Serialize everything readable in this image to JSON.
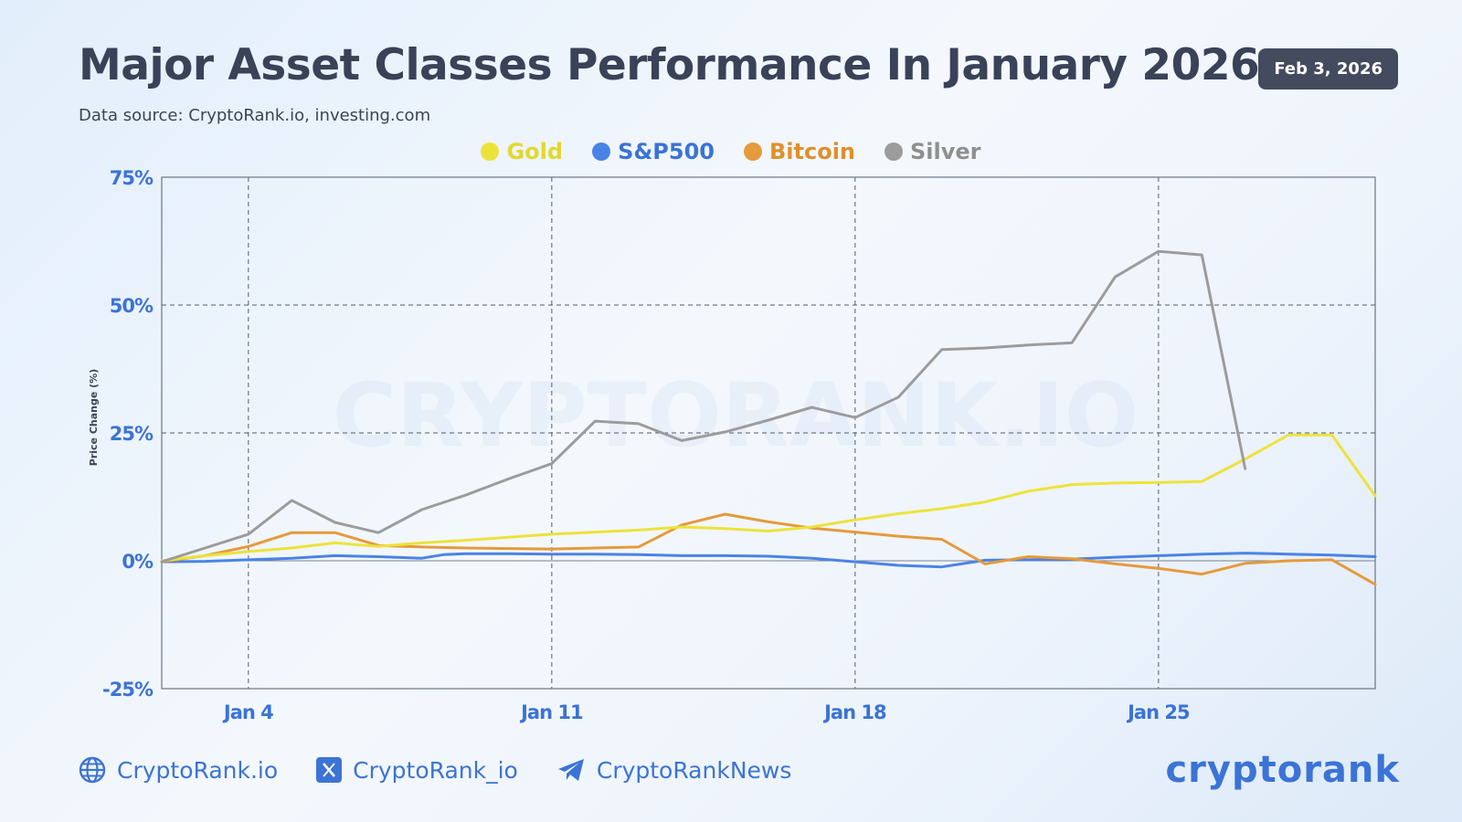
{
  "header": {
    "title": "Major Asset Classes Performance In January 2026",
    "subtitle": "Data source: CryptoRank.io, investing.com",
    "date": "Feb 3, 2026"
  },
  "watermark": "CRYPTORANK.IO",
  "footer": {
    "website": "CryptoRank.io",
    "x_handle": "CryptoRank_io",
    "telegram": "CryptoRankNews",
    "brand": "cryptorank"
  },
  "colors": {
    "Gold": "#ece33a",
    "S&P500": "#4a83e6",
    "Bitcoin": "#e59a3c",
    "Silver": "#9c9c9c",
    "axis_text": "#3b73d6"
  },
  "chart_data": {
    "type": "line",
    "title": "Major Asset Classes Performance In January 2026",
    "ylabel": "Price Change (%)",
    "xlabel": "",
    "ylim": [
      -25,
      75
    ],
    "xlim": [
      1,
      29
    ],
    "yticks": [
      -25,
      0,
      25,
      50,
      75
    ],
    "ytick_labels": [
      "-25%",
      "0%",
      "25%",
      "50%",
      "75%"
    ],
    "xticks": [
      3,
      10,
      17,
      24
    ],
    "xtick_labels": [
      "Jan 4",
      "Jan 11",
      "Jan 18",
      "Jan 25"
    ],
    "grid": true,
    "legend": "top-center",
    "series": [
      {
        "name": "Gold",
        "points": [
          [
            1.0,
            0
          ],
          [
            2.0,
            1.0
          ],
          [
            3.0,
            1.8
          ],
          [
            4.0,
            2.5
          ],
          [
            5.0,
            3.5
          ],
          [
            6.0,
            2.8
          ],
          [
            7.0,
            3.5
          ],
          [
            8.0,
            4.0
          ],
          [
            9.0,
            4.6
          ],
          [
            10.0,
            5.2
          ],
          [
            11.0,
            5.6
          ],
          [
            12.0,
            6.0
          ],
          [
            13.0,
            6.6
          ],
          [
            14.0,
            6.3
          ],
          [
            15.0,
            5.8
          ],
          [
            16.0,
            6.6
          ],
          [
            17.0,
            8.0
          ],
          [
            18.0,
            9.2
          ],
          [
            19.0,
            10.2
          ],
          [
            20.0,
            11.5
          ],
          [
            21.0,
            13.6
          ],
          [
            22.0,
            14.9
          ],
          [
            23.0,
            15.2
          ],
          [
            24.0,
            15.3
          ],
          [
            25.0,
            15.5
          ],
          [
            26.0,
            19.9
          ],
          [
            27.0,
            24.6
          ],
          [
            28.0,
            24.6
          ],
          [
            29.0,
            12.7
          ]
        ]
      },
      {
        "name": "S&P500",
        "points": [
          [
            1.0,
            -0.2
          ],
          [
            2.0,
            -0.1
          ],
          [
            3.0,
            0.2
          ],
          [
            4.0,
            0.5
          ],
          [
            5.0,
            1.0
          ],
          [
            6.0,
            0.8
          ],
          [
            7.0,
            0.5
          ],
          [
            7.5,
            1.2
          ],
          [
            8.0,
            1.4
          ],
          [
            9.0,
            1.4
          ],
          [
            10.0,
            1.3
          ],
          [
            11.0,
            1.3
          ],
          [
            12.0,
            1.2
          ],
          [
            13.0,
            1.0
          ],
          [
            14.0,
            1.0
          ],
          [
            15.0,
            0.9
          ],
          [
            16.0,
            0.5
          ],
          [
            17.0,
            -0.2
          ],
          [
            18.0,
            -0.9
          ],
          [
            19.0,
            -1.2
          ],
          [
            20.0,
            0.1
          ],
          [
            21.0,
            0.2
          ],
          [
            22.0,
            0.3
          ],
          [
            23.0,
            0.7
          ],
          [
            24.0,
            1.0
          ],
          [
            25.0,
            1.3
          ],
          [
            26.0,
            1.5
          ],
          [
            27.0,
            1.3
          ],
          [
            28.0,
            1.1
          ],
          [
            29.0,
            0.8
          ]
        ]
      },
      {
        "name": "Bitcoin",
        "points": [
          [
            1.0,
            -0.2
          ],
          [
            2.0,
            1.0
          ],
          [
            3.0,
            2.8
          ],
          [
            4.0,
            5.5
          ],
          [
            5.0,
            5.5
          ],
          [
            6.0,
            3.0
          ],
          [
            7.0,
            2.7
          ],
          [
            8.0,
            2.5
          ],
          [
            9.0,
            2.4
          ],
          [
            10.0,
            2.3
          ],
          [
            11.0,
            2.5
          ],
          [
            12.0,
            2.7
          ],
          [
            13.0,
            7.0
          ],
          [
            14.0,
            9.1
          ],
          [
            15.0,
            7.6
          ],
          [
            16.0,
            6.4
          ],
          [
            17.0,
            5.6
          ],
          [
            18.0,
            4.8
          ],
          [
            19.0,
            4.2
          ],
          [
            20.0,
            -0.6
          ],
          [
            21.0,
            0.8
          ],
          [
            22.0,
            0.4
          ],
          [
            23.0,
            -0.6
          ],
          [
            24.0,
            -1.5
          ],
          [
            25.0,
            -2.6
          ],
          [
            26.0,
            -0.5
          ],
          [
            27.0,
            0.0
          ],
          [
            28.0,
            0.2
          ],
          [
            29.0,
            -4.6
          ]
        ]
      },
      {
        "name": "Silver",
        "points": [
          [
            1.0,
            -0.2
          ],
          [
            2.0,
            2.5
          ],
          [
            3.0,
            5.2
          ],
          [
            4.0,
            11.8
          ],
          [
            5.0,
            7.5
          ],
          [
            6.0,
            5.5
          ],
          [
            7.0,
            10.0
          ],
          [
            8.0,
            12.8
          ],
          [
            9.0,
            16.0
          ],
          [
            10.0,
            19.0
          ],
          [
            11.0,
            27.3
          ],
          [
            12.0,
            26.8
          ],
          [
            13.0,
            23.5
          ],
          [
            14.0,
            25.2
          ],
          [
            15.0,
            27.5
          ],
          [
            16.0,
            30.0
          ],
          [
            17.0,
            28.0
          ],
          [
            18.0,
            32.0
          ],
          [
            19.0,
            41.3
          ],
          [
            20.0,
            41.6
          ],
          [
            21.0,
            42.2
          ],
          [
            22.0,
            42.6
          ],
          [
            23.0,
            55.5
          ],
          [
            24.0,
            60.5
          ],
          [
            25.0,
            59.8
          ],
          [
            26.0,
            18.0
          ]
        ]
      }
    ]
  }
}
